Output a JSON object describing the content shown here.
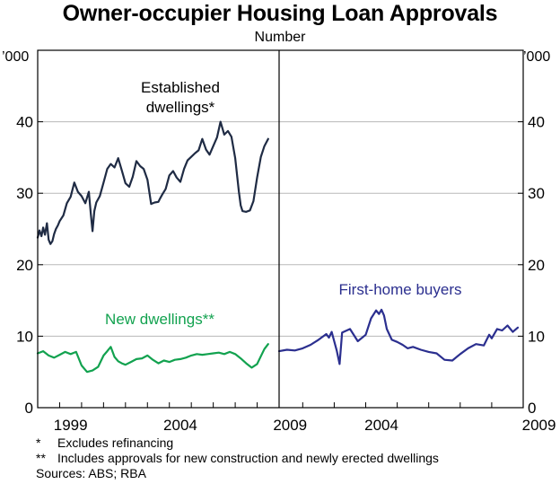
{
  "chart_data": {
    "type": "line",
    "title": "Owner-occupier Housing Loan Approvals",
    "subtitle": "Number",
    "unit_label": "’000",
    "ylim": [
      0,
      50
    ],
    "yticks": [
      0,
      10,
      20,
      30,
      40
    ],
    "grid": true,
    "panels": [
      {
        "xlim": [
          1998.0,
          2009.0
        ],
        "xticks": [
          1999,
          2004,
          2009
        ],
        "series": [
          {
            "name": "Established dwellings*",
            "color": "#1f2b44",
            "x": [
              1998.0,
              1998.08,
              1998.17,
              1998.25,
              1998.33,
              1998.42,
              1998.5,
              1998.58,
              1998.67,
              1998.75,
              1998.83,
              1998.92,
              1999.0,
              1999.17,
              1999.33,
              1999.5,
              1999.67,
              1999.83,
              2000.0,
              2000.17,
              2000.33,
              2000.42,
              2000.5,
              2000.58,
              2000.67,
              2000.83,
              2001.0,
              2001.17,
              2001.33,
              2001.5,
              2001.67,
              2001.83,
              2002.0,
              2002.17,
              2002.33,
              2002.5,
              2002.67,
              2002.83,
              2003.0,
              2003.17,
              2003.33,
              2003.5,
              2003.58,
              2003.67,
              2003.83,
              2004.0,
              2004.17,
              2004.33,
              2004.5,
              2004.67,
              2004.83,
              2005.0,
              2005.17,
              2005.33,
              2005.5,
              2005.67,
              2005.83,
              2006.0,
              2006.17,
              2006.33,
              2006.5,
              2006.67,
              2006.83,
              2007.0,
              2007.17,
              2007.25,
              2007.33,
              2007.5,
              2007.67,
              2007.83,
              2008.0,
              2008.17,
              2008.33,
              2008.5,
              2008.67,
              2008.83
            ],
            "values": [
              23.8,
              24.8,
              24.0,
              25.2,
              24.2,
              25.8,
              23.5,
              22.9,
              23.3,
              24.3,
              25.0,
              25.5,
              26.1,
              26.9,
              28.6,
              29.5,
              31.5,
              30.2,
              29.6,
              28.6,
              30.2,
              27.1,
              24.7,
              27.5,
              28.7,
              29.6,
              31.5,
              33.4,
              34.1,
              33.6,
              34.9,
              33.2,
              31.4,
              30.9,
              32.3,
              34.5,
              33.8,
              33.4,
              31.9,
              28.5,
              28.7,
              28.8,
              29.3,
              29.8,
              30.6,
              32.5,
              33.1,
              32.2,
              31.6,
              33.4,
              34.6,
              35.1,
              35.6,
              36.0,
              37.6,
              36.1,
              35.4,
              36.6,
              37.8,
              40.0,
              38.2,
              38.7,
              37.9,
              34.9,
              30.2,
              28.3,
              27.5,
              27.4,
              27.6,
              28.9,
              32.2,
              35.1,
              36.6,
              37.6,
              null,
              null
            ],
            "label_text": "Established dwellings*"
          },
          {
            "name": "New dwellings**",
            "color": "#12a24f",
            "x": [
              1998.0,
              1998.25,
              1998.5,
              1998.75,
              1999.0,
              1999.25,
              1999.5,
              1999.75,
              2000.0,
              2000.25,
              2000.5,
              2000.75,
              2001.0,
              2001.17,
              2001.33,
              2001.5,
              2001.67,
              2001.83,
              2002.0,
              2002.25,
              2002.5,
              2002.75,
              2003.0,
              2003.25,
              2003.5,
              2003.75,
              2004.0,
              2004.25,
              2004.5,
              2004.75,
              2005.0,
              2005.25,
              2005.5,
              2005.75,
              2006.0,
              2006.25,
              2006.5,
              2006.75,
              2007.0,
              2007.25,
              2007.5,
              2007.75,
              2008.0,
              2008.17,
              2008.33,
              2008.5
            ],
            "values": [
              7.6,
              7.9,
              7.3,
              7.0,
              7.4,
              7.8,
              7.5,
              7.8,
              5.9,
              5.0,
              5.2,
              5.7,
              7.3,
              7.9,
              8.5,
              7.1,
              6.5,
              6.2,
              6.0,
              6.4,
              6.8,
              6.9,
              7.3,
              6.7,
              6.2,
              6.6,
              6.4,
              6.7,
              6.8,
              7.0,
              7.3,
              7.5,
              7.4,
              7.5,
              7.6,
              7.7,
              7.5,
              7.8,
              7.5,
              6.9,
              6.2,
              5.6,
              6.1,
              7.2,
              8.2,
              8.9
            ],
            "label_text": "New dwellings**"
          }
        ]
      },
      {
        "xlim": [
          2001.25,
          2009.0
        ],
        "xticks": [
          2004,
          2009
        ],
        "series": [
          {
            "name": "First-home buyers",
            "color": "#2b2f8f",
            "x": [
              2001.25,
              2001.5,
              2001.75,
              2002.0,
              2002.25,
              2002.5,
              2002.75,
              2002.83,
              2002.92,
              2003.0,
              2003.08,
              2003.17,
              2003.25,
              2003.5,
              2003.75,
              2004.0,
              2004.17,
              2004.33,
              2004.42,
              2004.5,
              2004.58,
              2004.67,
              2004.83,
              2005.0,
              2005.17,
              2005.33,
              2005.5,
              2005.75,
              2006.0,
              2006.25,
              2006.5,
              2006.75,
              2007.0,
              2007.25,
              2007.5,
              2007.75,
              2007.92,
              2008.0,
              2008.17,
              2008.33,
              2008.5,
              2008.67,
              2008.83
            ],
            "values": [
              7.9,
              8.1,
              8.0,
              8.3,
              8.8,
              9.5,
              10.3,
              9.8,
              10.6,
              9.3,
              8.0,
              6.1,
              10.5,
              11.0,
              9.3,
              10.2,
              12.5,
              13.6,
              13.1,
              13.7,
              12.9,
              11.0,
              9.5,
              9.2,
              8.8,
              8.3,
              8.5,
              8.1,
              7.8,
              7.6,
              6.7,
              6.6,
              7.5,
              8.3,
              8.9,
              8.7,
              10.2,
              9.7,
              11.0,
              10.8,
              11.5,
              10.6,
              11.2
            ],
            "label_text": "First-home buyers"
          }
        ]
      }
    ],
    "footnotes": [
      {
        "mark": "*",
        "text": "Excludes refinancing"
      },
      {
        "mark": "**",
        "text": "Includes approvals for new construction and newly erected dwellings"
      }
    ],
    "sources": "Sources: ABS; RBA"
  }
}
